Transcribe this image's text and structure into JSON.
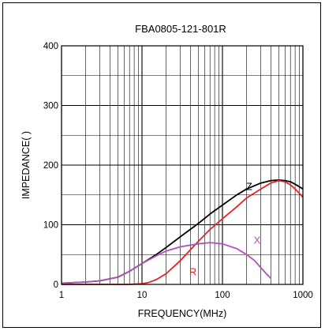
{
  "chart_data": {
    "type": "line",
    "title": "FBA0805-121-801R",
    "xlabel": "FREQUENCY(MHz)",
    "ylabel": "IMPEDANCE(   )",
    "x_scale": "log",
    "xlim": [
      1,
      1000
    ],
    "ylim": [
      0,
      400
    ],
    "x_ticks": [
      "1",
      "10",
      "100",
      "1000"
    ],
    "y_ticks": [
      "0",
      "100",
      "200",
      "300",
      "400"
    ],
    "grid": true,
    "series": [
      {
        "name": "Z",
        "color": "#000000",
        "points": [
          [
            1,
            2
          ],
          [
            2,
            4
          ],
          [
            3,
            6
          ],
          [
            5,
            12
          ],
          [
            7,
            22
          ],
          [
            10,
            35
          ],
          [
            15,
            50
          ],
          [
            20,
            62
          ],
          [
            30,
            80
          ],
          [
            50,
            102
          ],
          [
            70,
            118
          ],
          [
            100,
            133
          ],
          [
            150,
            150
          ],
          [
            200,
            160
          ],
          [
            300,
            170
          ],
          [
            400,
            174
          ],
          [
            500,
            175
          ],
          [
            600,
            174
          ],
          [
            700,
            172
          ],
          [
            800,
            168
          ],
          [
            900,
            164
          ],
          [
            1000,
            160
          ]
        ]
      },
      {
        "name": "R",
        "color": "#e82020",
        "points": [
          [
            1,
            0
          ],
          [
            3,
            0
          ],
          [
            5,
            0
          ],
          [
            7,
            0
          ],
          [
            10,
            1
          ],
          [
            12,
            3
          ],
          [
            15,
            8
          ],
          [
            20,
            18
          ],
          [
            30,
            40
          ],
          [
            50,
            72
          ],
          [
            70,
            92
          ],
          [
            100,
            110
          ],
          [
            150,
            130
          ],
          [
            200,
            145
          ],
          [
            300,
            160
          ],
          [
            400,
            170
          ],
          [
            500,
            174
          ],
          [
            600,
            172
          ],
          [
            700,
            167
          ],
          [
            800,
            160
          ],
          [
            900,
            153
          ],
          [
            1000,
            146
          ]
        ]
      },
      {
        "name": "X",
        "color": "#b050b8",
        "points": [
          [
            1,
            2
          ],
          [
            2,
            4
          ],
          [
            3,
            6
          ],
          [
            5,
            12
          ],
          [
            7,
            22
          ],
          [
            10,
            35
          ],
          [
            15,
            48
          ],
          [
            20,
            56
          ],
          [
            30,
            63
          ],
          [
            50,
            68
          ],
          [
            70,
            70
          ],
          [
            100,
            68
          ],
          [
            150,
            60
          ],
          [
            200,
            50
          ],
          [
            250,
            40
          ],
          [
            300,
            28
          ],
          [
            350,
            18
          ],
          [
            400,
            10
          ]
        ]
      }
    ]
  }
}
